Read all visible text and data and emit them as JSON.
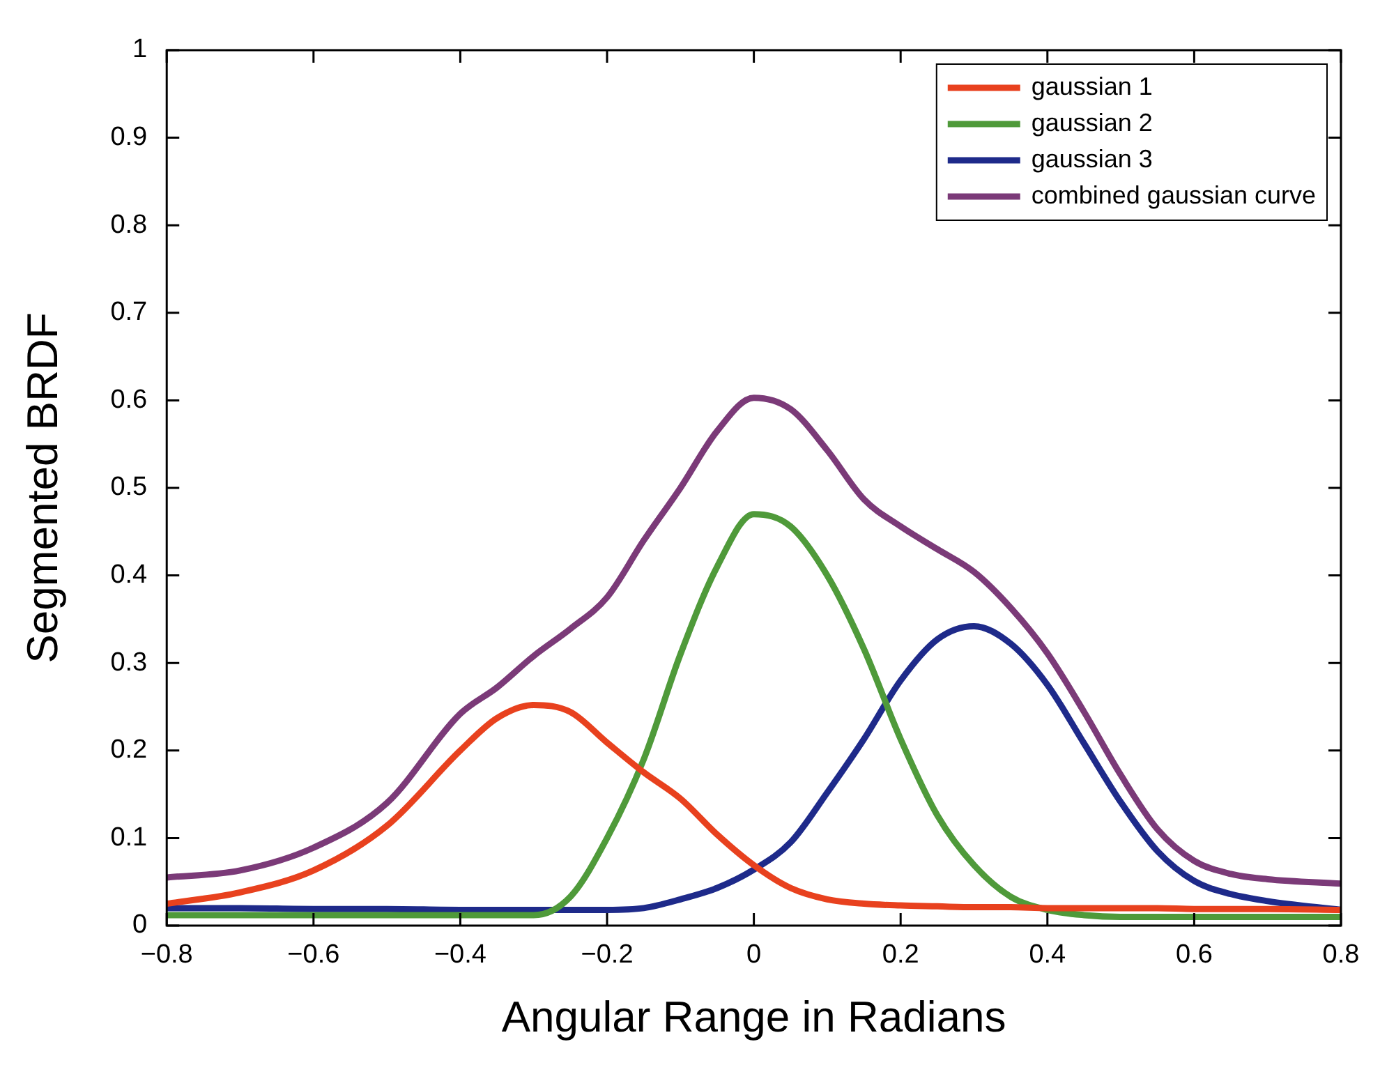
{
  "chart_data": {
    "type": "line",
    "xlabel": "Angular Range in Radians",
    "ylabel": "Segmented BRDF",
    "x": [
      -0.8,
      -0.7,
      -0.6,
      -0.5,
      -0.4,
      -0.35,
      -0.3,
      -0.25,
      -0.2,
      -0.15,
      -0.1,
      -0.05,
      0,
      0.05,
      0.1,
      0.15,
      0.2,
      0.25,
      0.3,
      0.35,
      0.4,
      0.45,
      0.5,
      0.55,
      0.6,
      0.65,
      0.7,
      0.8
    ],
    "series": [
      {
        "name": "gaussian 1",
        "color": "#e8411e",
        "values": [
          0.025,
          0.038,
          0.063,
          0.114,
          0.2,
          0.237,
          0.252,
          0.244,
          0.209,
          0.175,
          0.145,
          0.104,
          0.069,
          0.043,
          0.03,
          0.025,
          0.023,
          0.022,
          0.021,
          0.021,
          0.02,
          0.02,
          0.02,
          0.02,
          0.019,
          0.019,
          0.019,
          0.018
        ]
      },
      {
        "name": "gaussian 2",
        "color": "#4f9a3a",
        "values": [
          0.012,
          0.012,
          0.012,
          0.012,
          0.012,
          0.012,
          0.012,
          0.033,
          0.1,
          0.19,
          0.31,
          0.41,
          0.47,
          0.456,
          0.4,
          0.316,
          0.213,
          0.126,
          0.069,
          0.033,
          0.018,
          0.012,
          0.01,
          0.01,
          0.01,
          0.01,
          0.01,
          0.01
        ]
      },
      {
        "name": "gaussian 3",
        "color": "#1e2a8a",
        "values": [
          0.02,
          0.02,
          0.019,
          0.019,
          0.018,
          0.018,
          0.018,
          0.018,
          0.018,
          0.02,
          0.03,
          0.043,
          0.064,
          0.095,
          0.152,
          0.213,
          0.28,
          0.327,
          0.342,
          0.322,
          0.275,
          0.208,
          0.141,
          0.085,
          0.051,
          0.036,
          0.028,
          0.018
        ]
      },
      {
        "name": "combined gaussian curve",
        "color": "#7b3a78",
        "values": [
          0.055,
          0.063,
          0.089,
          0.14,
          0.242,
          0.272,
          0.308,
          0.339,
          0.375,
          0.44,
          0.5,
          0.565,
          0.603,
          0.59,
          0.543,
          0.487,
          0.456,
          0.43,
          0.404,
          0.363,
          0.311,
          0.244,
          0.172,
          0.11,
          0.074,
          0.059,
          0.053,
          0.048
        ]
      }
    ],
    "xlim": [
      -0.8,
      0.8
    ],
    "xticks": [
      -0.8,
      -0.6,
      -0.4,
      -0.2,
      0,
      0.2,
      0.4,
      0.6,
      0.8
    ],
    "ylim": [
      0,
      1
    ],
    "yticks": [
      0,
      0.1,
      0.2,
      0.3,
      0.4,
      0.5,
      0.6,
      0.7,
      0.8,
      0.9,
      1
    ],
    "grid": false,
    "legend": "top right",
    "marker": "none",
    "line_style": "solid"
  }
}
